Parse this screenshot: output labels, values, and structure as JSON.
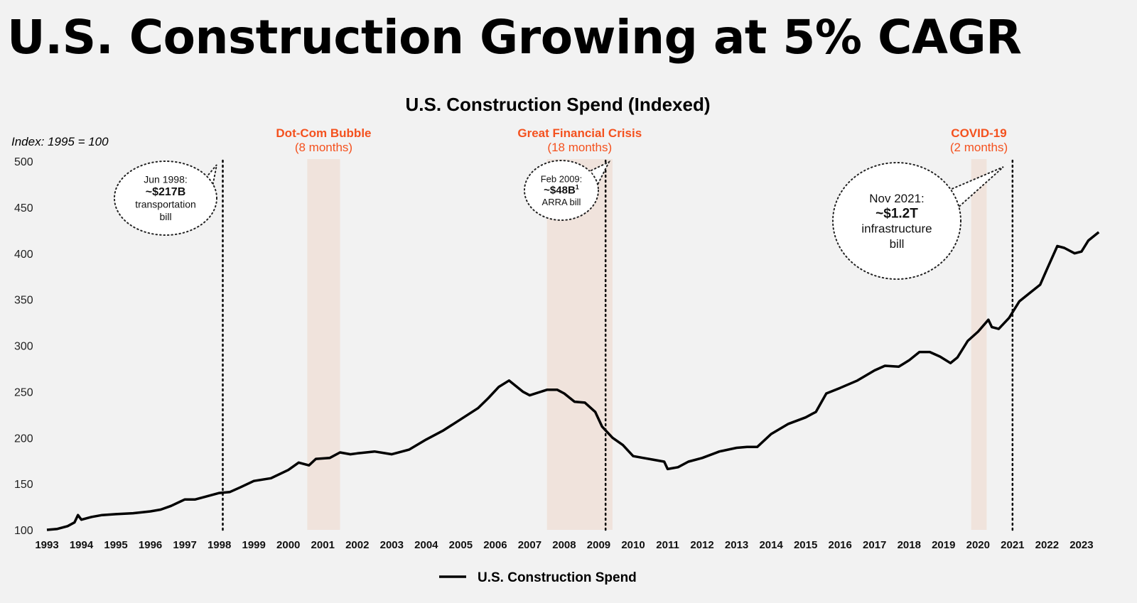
{
  "page_title": "U.S. Construction Growing at 5% CAGR",
  "colors": {
    "accent": "#f4511e",
    "shade": "#f0e3dc",
    "line": "#000000",
    "background": "#f2f2f2"
  },
  "chart_data": {
    "type": "line",
    "title": "U.S. Construction Spend (Indexed)",
    "ylabel": "Index: 1995 = 100",
    "xlabel": "",
    "ylim": [
      100,
      500
    ],
    "xlim": [
      1993,
      2023.5
    ],
    "yticks": [
      "100",
      "150",
      "200",
      "250",
      "300",
      "350",
      "400",
      "450",
      "500"
    ],
    "xticks": [
      "1993",
      "1994",
      "1995",
      "1996",
      "1997",
      "1998",
      "1999",
      "2000",
      "2001",
      "2002",
      "2003",
      "2004",
      "2005",
      "2006",
      "2007",
      "2008",
      "2009",
      "2010",
      "2011",
      "2012",
      "2013",
      "2014",
      "2015",
      "2016",
      "2017",
      "2018",
      "2019",
      "2020",
      "2021",
      "2022",
      "2023"
    ],
    "grid": false,
    "legend": {
      "position": "bottom-center",
      "entries": [
        "U.S. Construction Spend"
      ]
    },
    "series": [
      {
        "name": "U.S. Construction Spend",
        "x": [
          1993.0,
          1993.3,
          1993.6,
          1993.8,
          1993.9,
          1994.0,
          1994.3,
          1994.6,
          1995.0,
          1995.5,
          1996.0,
          1996.3,
          1996.6,
          1997.0,
          1997.3,
          1997.6,
          1998.0,
          1998.3,
          1998.6,
          1999.0,
          1999.5,
          2000.0,
          2000.3,
          2000.6,
          2000.8,
          2001.2,
          2001.5,
          2001.8,
          2002.0,
          2002.5,
          2003.0,
          2003.5,
          2004.0,
          2004.5,
          2005.0,
          2005.5,
          2005.8,
          2006.1,
          2006.4,
          2006.8,
          2007.0,
          2007.5,
          2007.8,
          2008.0,
          2008.3,
          2008.6,
          2008.9,
          2009.1,
          2009.4,
          2009.7,
          2010.0,
          2010.3,
          2010.6,
          2010.9,
          2011.0,
          2011.3,
          2011.6,
          2012.0,
          2012.5,
          2013.0,
          2013.3,
          2013.6,
          2014.0,
          2014.5,
          2015.0,
          2015.3,
          2015.6,
          2016.0,
          2016.5,
          2017.0,
          2017.3,
          2017.7,
          2018.0,
          2018.3,
          2018.6,
          2018.9,
          2019.2,
          2019.4,
          2019.7,
          2020.0,
          2020.3,
          2020.4,
          2020.6,
          2020.9,
          2021.2,
          2021.5,
          2021.8,
          2022.0,
          2022.3,
          2022.5,
          2022.8,
          2023.0,
          2023.2,
          2023.5
        ],
        "values": [
          100,
          101,
          104,
          108,
          116,
          111,
          114,
          116,
          117,
          118,
          120,
          122,
          126,
          133,
          133,
          136,
          140,
          141,
          146,
          153,
          156,
          165,
          173,
          170,
          177,
          178,
          184,
          182,
          183,
          185,
          182,
          187,
          198,
          208,
          220,
          232,
          243,
          255,
          262,
          250,
          246,
          252,
          252,
          248,
          239,
          238,
          228,
          212,
          200,
          192,
          180,
          178,
          176,
          174,
          166,
          168,
          174,
          178,
          185,
          189,
          190,
          190,
          204,
          215,
          222,
          228,
          248,
          254,
          262,
          273,
          278,
          277,
          284,
          293,
          293,
          288,
          281,
          287,
          305,
          315,
          328,
          320,
          318,
          330,
          348,
          357,
          366,
          383,
          408,
          406,
          400,
          402,
          414,
          423
        ]
      }
    ],
    "shaded_periods": [
      {
        "label": "Dot-Com Bubble",
        "duration": "(8 months)",
        "start": 2000.55,
        "end": 2001.5
      },
      {
        "label": "Great Financial Crisis",
        "duration": "(18 months)",
        "start": 2007.5,
        "end": 2009.4
      },
      {
        "label": "COVID-19",
        "duration": "(2 months)",
        "start": 2019.8,
        "end": 2020.25
      }
    ],
    "annotations": [
      {
        "x": 1998.1,
        "date": "Jun 1998:",
        "amount": "~$217B",
        "desc1": "transportation",
        "desc2": "bill"
      },
      {
        "x": 2009.2,
        "date": "Feb 2009:",
        "amount": "~$48B",
        "sup": "1",
        "desc1": "ARRA bill",
        "desc2": ""
      },
      {
        "x": 2021.0,
        "date": "Nov 2021:",
        "amount": "~$1.2T",
        "desc1": "infrastructure",
        "desc2": "bill"
      }
    ]
  }
}
